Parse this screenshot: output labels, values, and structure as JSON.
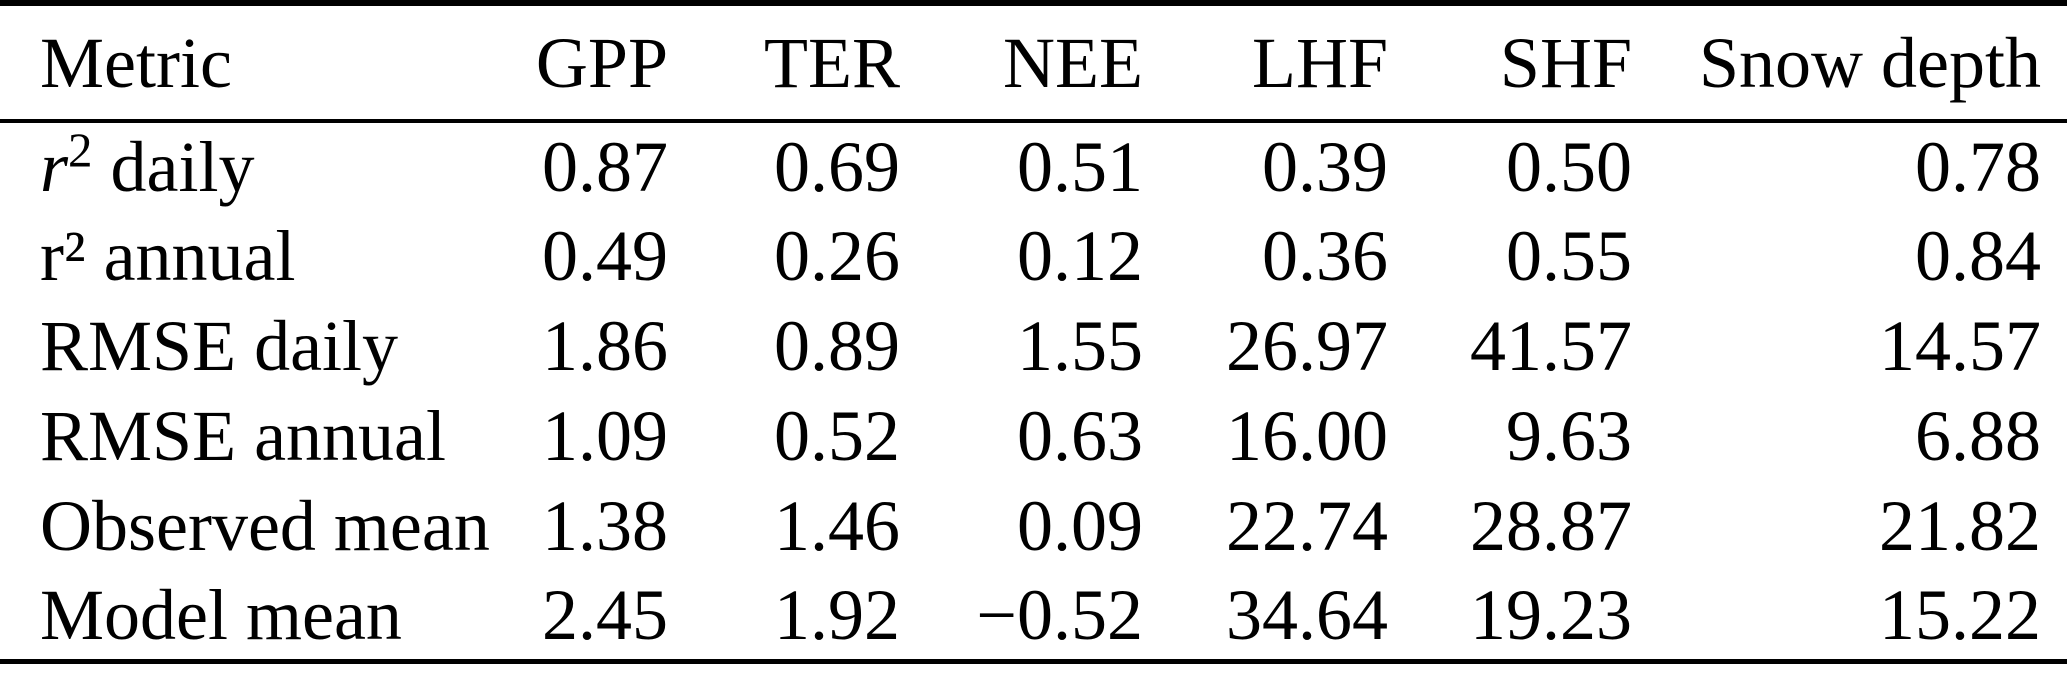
{
  "table": {
    "columns": [
      "Metric",
      "GPP",
      "TER",
      "NEE",
      "LHF",
      "SHF",
      "Snow depth"
    ],
    "rows": [
      {
        "label": {
          "var": "r",
          "sup": "2",
          "text": " daily"
        },
        "values": [
          "0.87",
          "0.69",
          "0.51",
          "0.39",
          "0.50",
          "0.78"
        ]
      },
      {
        "label": {
          "var": "",
          "sup": "",
          "text": "r² annual"
        },
        "values": [
          "0.49",
          "0.26",
          "0.12",
          "0.36",
          "0.55",
          "0.84"
        ]
      },
      {
        "label": {
          "var": "",
          "sup": "",
          "text": "RMSE daily"
        },
        "values": [
          "1.86",
          "0.89",
          "1.55",
          "26.97",
          "41.57",
          "14.57"
        ]
      },
      {
        "label": {
          "var": "",
          "sup": "",
          "text": "RMSE annual"
        },
        "values": [
          "1.09",
          "0.52",
          "0.63",
          "16.00",
          "9.63",
          "6.88"
        ]
      },
      {
        "label": {
          "var": "",
          "sup": "",
          "text": "Observed mean"
        },
        "values": [
          "1.38",
          "1.46",
          "0.09",
          "22.74",
          "28.87",
          "21.82"
        ]
      },
      {
        "label": {
          "var": "",
          "sup": "",
          "text": "Model mean"
        },
        "values": [
          "2.45",
          "1.92",
          "−0.52",
          "34.64",
          "19.23",
          "15.22"
        ]
      }
    ],
    "colors": {
      "text": "#000000",
      "rules": "#000000",
      "background": "#ffffff"
    }
  }
}
